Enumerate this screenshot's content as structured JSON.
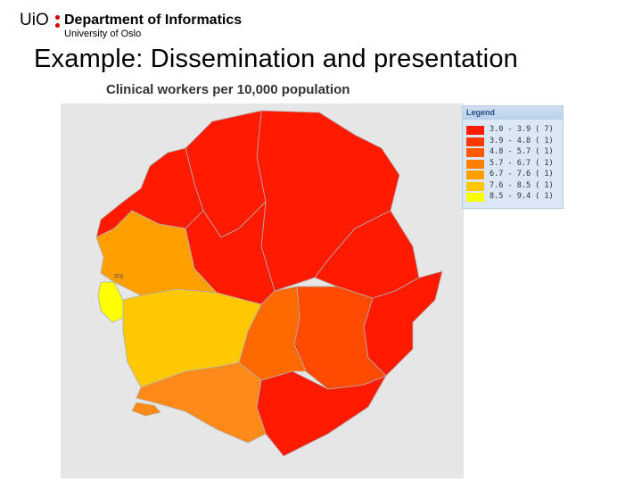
{
  "header": {
    "logo_text": "UiO",
    "department": "Department of Informatics",
    "university": "University of Oslo"
  },
  "slide_title": "Example: Dissemination and presentation",
  "map": {
    "title": "Clinical workers per 10,000 population",
    "background_color": "#e6e6e6",
    "region_label": "IF8"
  },
  "legend": {
    "title": "Legend",
    "items": [
      {
        "range": "3.0 - 3.9",
        "count": "( 7)",
        "color": "#ff1a00"
      },
      {
        "range": "3.9 - 4.8",
        "count": "( 1)",
        "color": "#ff3a00"
      },
      {
        "range": "4.8 - 5.7",
        "count": "( 1)",
        "color": "#ff5a00"
      },
      {
        "range": "5.7 - 6.7",
        "count": "( 1)",
        "color": "#ff8000"
      },
      {
        "range": "6.7 - 7.6",
        "count": "( 1)",
        "color": "#ffa000"
      },
      {
        "range": "7.6 - 8.5",
        "count": "( 1)",
        "color": "#ffc800"
      },
      {
        "range": "8.5 - 9.4",
        "count": "( 1)",
        "color": "#ffff00"
      }
    ]
  }
}
